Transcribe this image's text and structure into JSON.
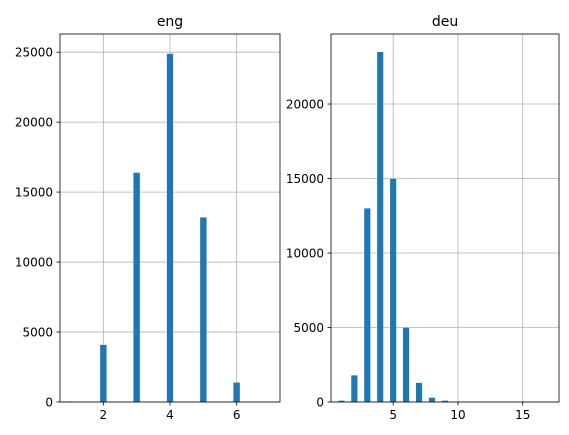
{
  "chart_data": [
    {
      "type": "bar",
      "title": "eng",
      "xlabel": "",
      "ylabel": "",
      "grid": true,
      "bar_color": "#1f77b4",
      "bin_width": 0.2,
      "xlim": [
        0.7,
        7.3
      ],
      "ylim": [
        0,
        26300
      ],
      "xticks": [
        2,
        4,
        6
      ],
      "yticks": [
        0,
        5000,
        10000,
        15000,
        20000,
        25000
      ],
      "bars": [
        {
          "x": 1,
          "value": 50
        },
        {
          "x": 2,
          "value": 4100
        },
        {
          "x": 3,
          "value": 16400
        },
        {
          "x": 4,
          "value": 24900
        },
        {
          "x": 5,
          "value": 13200
        },
        {
          "x": 6,
          "value": 1400
        }
      ]
    },
    {
      "type": "bar",
      "title": "deu",
      "xlabel": "",
      "ylabel": "",
      "grid": true,
      "bar_color": "#1f77b4",
      "bin_width": 0.5,
      "xlim": [
        0.2,
        17.8
      ],
      "ylim": [
        0,
        24700
      ],
      "xticks": [
        5,
        10,
        15
      ],
      "yticks": [
        0,
        5000,
        10000,
        15000,
        20000
      ],
      "bars": [
        {
          "x": 1,
          "value": 100
        },
        {
          "x": 2,
          "value": 1800
        },
        {
          "x": 3,
          "value": 13000
        },
        {
          "x": 4,
          "value": 23500
        },
        {
          "x": 5,
          "value": 15000
        },
        {
          "x": 6,
          "value": 5000
        },
        {
          "x": 7,
          "value": 1300
        },
        {
          "x": 8,
          "value": 300
        },
        {
          "x": 9,
          "value": 100
        },
        {
          "x": 10,
          "value": 20
        },
        {
          "x": 11,
          "value": 10
        }
      ]
    }
  ]
}
